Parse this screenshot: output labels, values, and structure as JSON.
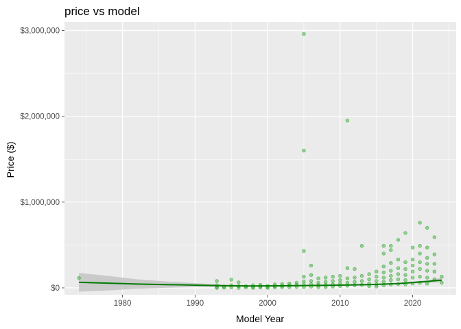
{
  "chart_data": {
    "type": "scatter",
    "title": "price vs model",
    "xlabel": "Model Year",
    "ylabel": "Price ($)",
    "xlim": [
      1972,
      2026
    ],
    "ylim": [
      -80000,
      3100000
    ],
    "x_ticks": [
      1980,
      1990,
      2000,
      2010,
      2020
    ],
    "x_tick_labels": [
      "1980",
      "1990",
      "2000",
      "2010",
      "2020"
    ],
    "y_ticks": [
      0,
      1000000,
      2000000,
      3000000
    ],
    "y_tick_labels": [
      "$0",
      "$1,000,000",
      "$2,000,000",
      "$3,000,000"
    ],
    "grid": true,
    "legend": "none",
    "colors": {
      "panel_background": "#ebebeb",
      "grid": "#ffffff",
      "points": "#22b022",
      "points_stroke": "#1a8f1a",
      "smooth_line": "#007a00",
      "confidence_band": "#c4c4c4"
    },
    "series": [
      {
        "values_note_free": true,
        "points": [
          [
            1974,
            115000
          ],
          [
            1993,
            80000
          ],
          [
            1993,
            30000
          ],
          [
            1993,
            10000
          ],
          [
            1993,
            0
          ],
          [
            1994,
            15000
          ],
          [
            1994,
            2000
          ],
          [
            1995,
            95000
          ],
          [
            1995,
            30000
          ],
          [
            1995,
            5000
          ],
          [
            1996,
            65000
          ],
          [
            1996,
            20000
          ],
          [
            1996,
            0
          ],
          [
            1997,
            20000
          ],
          [
            1997,
            5000
          ],
          [
            1998,
            30000
          ],
          [
            1998,
            10000
          ],
          [
            1998,
            0
          ],
          [
            1999,
            35000
          ],
          [
            1999,
            15000
          ],
          [
            1999,
            5000
          ],
          [
            2000,
            25000
          ],
          [
            2000,
            10000
          ],
          [
            2000,
            0
          ],
          [
            2001,
            40000
          ],
          [
            2001,
            20000
          ],
          [
            2001,
            5000
          ],
          [
            2002,
            45000
          ],
          [
            2002,
            25000
          ],
          [
            2002,
            8000
          ],
          [
            2003,
            50000
          ],
          [
            2003,
            30000
          ],
          [
            2003,
            10000
          ],
          [
            2004,
            60000
          ],
          [
            2004,
            35000
          ],
          [
            2004,
            12000
          ],
          [
            2005,
            2960000
          ],
          [
            2005,
            1600000
          ],
          [
            2005,
            430000
          ],
          [
            2005,
            130000
          ],
          [
            2005,
            75000
          ],
          [
            2005,
            40000
          ],
          [
            2005,
            10000
          ],
          [
            2006,
            260000
          ],
          [
            2006,
            150000
          ],
          [
            2006,
            80000
          ],
          [
            2006,
            40000
          ],
          [
            2006,
            15000
          ],
          [
            2007,
            110000
          ],
          [
            2007,
            60000
          ],
          [
            2007,
            30000
          ],
          [
            2007,
            10000
          ],
          [
            2008,
            120000
          ],
          [
            2008,
            70000
          ],
          [
            2008,
            35000
          ],
          [
            2008,
            10000
          ],
          [
            2009,
            130000
          ],
          [
            2009,
            80000
          ],
          [
            2009,
            40000
          ],
          [
            2009,
            15000
          ],
          [
            2010,
            140000
          ],
          [
            2010,
            90000
          ],
          [
            2010,
            50000
          ],
          [
            2010,
            20000
          ],
          [
            2011,
            1950000
          ],
          [
            2011,
            230000
          ],
          [
            2011,
            110000
          ],
          [
            2011,
            60000
          ],
          [
            2011,
            25000
          ],
          [
            2012,
            220000
          ],
          [
            2012,
            120000
          ],
          [
            2012,
            70000
          ],
          [
            2012,
            30000
          ],
          [
            2013,
            490000
          ],
          [
            2013,
            140000
          ],
          [
            2013,
            80000
          ],
          [
            2013,
            35000
          ],
          [
            2014,
            160000
          ],
          [
            2014,
            100000
          ],
          [
            2014,
            50000
          ],
          [
            2014,
            20000
          ],
          [
            2015,
            190000
          ],
          [
            2015,
            130000
          ],
          [
            2015,
            80000
          ],
          [
            2015,
            40000
          ],
          [
            2015,
            15000
          ],
          [
            2016,
            490000
          ],
          [
            2016,
            400000
          ],
          [
            2016,
            250000
          ],
          [
            2016,
            180000
          ],
          [
            2016,
            120000
          ],
          [
            2016,
            70000
          ],
          [
            2016,
            30000
          ],
          [
            2017,
            490000
          ],
          [
            2017,
            440000
          ],
          [
            2017,
            290000
          ],
          [
            2017,
            200000
          ],
          [
            2017,
            140000
          ],
          [
            2017,
            90000
          ],
          [
            2017,
            40000
          ],
          [
            2018,
            560000
          ],
          [
            2018,
            330000
          ],
          [
            2018,
            230000
          ],
          [
            2018,
            160000
          ],
          [
            2018,
            100000
          ],
          [
            2018,
            45000
          ],
          [
            2019,
            640000
          ],
          [
            2019,
            300000
          ],
          [
            2019,
            220000
          ],
          [
            2019,
            150000
          ],
          [
            2019,
            90000
          ],
          [
            2019,
            40000
          ],
          [
            2020,
            470000
          ],
          [
            2020,
            330000
          ],
          [
            2020,
            260000
          ],
          [
            2020,
            190000
          ],
          [
            2020,
            120000
          ],
          [
            2020,
            50000
          ],
          [
            2021,
            760000
          ],
          [
            2021,
            490000
          ],
          [
            2021,
            400000
          ],
          [
            2021,
            300000
          ],
          [
            2021,
            220000
          ],
          [
            2021,
            130000
          ],
          [
            2021,
            60000
          ],
          [
            2022,
            700000
          ],
          [
            2022,
            470000
          ],
          [
            2022,
            350000
          ],
          [
            2022,
            280000
          ],
          [
            2022,
            200000
          ],
          [
            2022,
            120000
          ],
          [
            2022,
            50000
          ],
          [
            2023,
            590000
          ],
          [
            2023,
            390000
          ],
          [
            2023,
            280000
          ],
          [
            2023,
            190000
          ],
          [
            2023,
            100000
          ],
          [
            2024,
            130000
          ],
          [
            2024,
            60000
          ]
        ]
      }
    ],
    "smooth": {
      "x": [
        1974,
        1978,
        1982,
        1986,
        1990,
        1994,
        1998,
        2002,
        2006,
        2010,
        2014,
        2018,
        2022,
        2024
      ],
      "y": [
        65000,
        55000,
        45000,
        38000,
        32000,
        25000,
        22000,
        24000,
        28000,
        32000,
        38000,
        50000,
        75000,
        90000
      ],
      "upper": [
        175000,
        140000,
        100000,
        75000,
        55000,
        38000,
        30000,
        30000,
        33000,
        37000,
        44000,
        58000,
        90000,
        115000
      ],
      "lower": [
        -45000,
        -30000,
        -10000,
        1000,
        9000,
        12000,
        14000,
        18000,
        23000,
        27000,
        32000,
        42000,
        60000,
        65000
      ]
    }
  }
}
